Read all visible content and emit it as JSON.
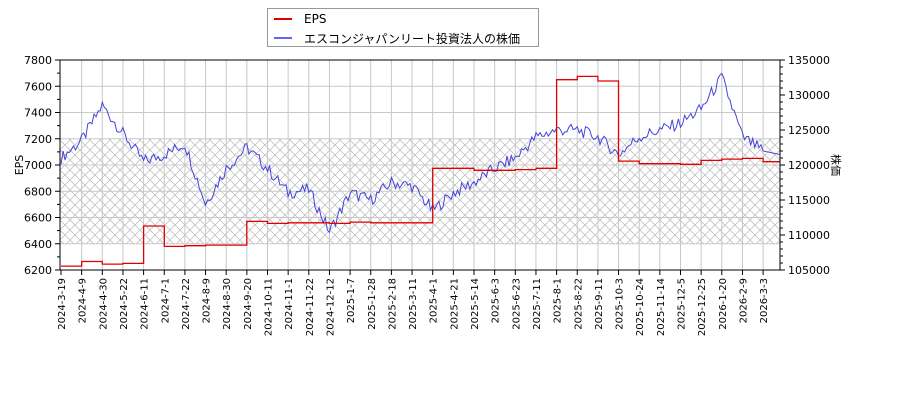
{
  "legend": {
    "items": [
      {
        "label": "EPS",
        "color": "#e00000"
      },
      {
        "label": "エスコンジャパンリート投資法人の株価",
        "color": "#4444dd"
      }
    ]
  },
  "axes": {
    "left_title": "EPS",
    "right_title": "株価",
    "left_ticks": [
      "7800",
      "7600",
      "7400",
      "7200",
      "7000",
      "6800",
      "6600",
      "6400",
      "6200"
    ],
    "right_ticks": [
      "135000",
      "130000",
      "125000",
      "120000",
      "115000",
      "110000",
      "105000"
    ],
    "x_ticks": [
      "2024-3-19",
      "2024-4-9",
      "2024-4-30",
      "2024-5-22",
      "2024-6-11",
      "2024-7-1",
      "2024-7-22",
      "2024-8-9",
      "2024-8-30",
      "2024-9-20",
      "2024-10-11",
      "2024-11-1",
      "2024-11-22",
      "2024-12-12",
      "2025-1-7",
      "2025-1-28",
      "2025-2-18",
      "2025-3-11",
      "2025-4-1",
      "2025-4-21",
      "2025-5-14",
      "2025-6-3",
      "2025-6-23",
      "2025-7-11",
      "2025-8-1",
      "2025-8-22",
      "2025-9-11",
      "2025-10-3",
      "2025-10-24",
      "2025-11-14",
      "2025-12-5",
      "2025-12-25",
      "2026-1-20",
      "2026-2-9",
      "2026-3-3"
    ]
  },
  "chart_data": {
    "type": "line",
    "title": "",
    "xlabel": "",
    "ylabel": "EPS",
    "ylabel_right": "株価",
    "ylim": [
      6200,
      7800
    ],
    "ylim_right": [
      105000,
      135000
    ],
    "grid": true,
    "legend_position": "top-center",
    "shaded_band": {
      "y_from": 6400,
      "y_to": 7200,
      "pattern": "crosshatch"
    },
    "categories": [
      "2024-3-19",
      "2024-4-9",
      "2024-4-30",
      "2024-5-22",
      "2024-6-11",
      "2024-7-1",
      "2024-7-22",
      "2024-8-9",
      "2024-8-30",
      "2024-9-20",
      "2024-10-11",
      "2024-11-1",
      "2024-11-22",
      "2024-12-12",
      "2025-1-7",
      "2025-1-28",
      "2025-2-18",
      "2025-3-11",
      "2025-4-1",
      "2025-4-21",
      "2025-5-14",
      "2025-6-3",
      "2025-6-23",
      "2025-7-11",
      "2025-8-1",
      "2025-8-22",
      "2025-9-11",
      "2025-10-3",
      "2025-10-24",
      "2025-11-14",
      "2025-12-5",
      "2025-12-25",
      "2026-1-20",
      "2026-2-9",
      "2026-3-3"
    ],
    "series": [
      {
        "name": "EPS",
        "axis": "left",
        "color": "#e00000",
        "values": [
          6230,
          6265,
          6245,
          6250,
          6535,
          6380,
          6385,
          6390,
          6390,
          6570,
          6555,
          6560,
          6560,
          6555,
          6565,
          6560,
          6560,
          6560,
          6975,
          6975,
          6960,
          6960,
          6965,
          6975,
          7650,
          7675,
          7640,
          7030,
          7010,
          7010,
          7005,
          7035,
          7045,
          7050,
          7025
        ]
      },
      {
        "name": "エスコンジャパンリート投資法人の株価",
        "axis": "right",
        "color": "#4444dd",
        "values": [
          121000,
          123500,
          128500,
          124500,
          120500,
          121500,
          123000,
          114500,
          119500,
          122500,
          119500,
          116000,
          116500,
          110500,
          116000,
          115000,
          117500,
          117000,
          113500,
          116000,
          117500,
          119500,
          121000,
          124000,
          125000,
          125000,
          124000,
          121500,
          124000,
          125000,
          126000,
          128000,
          132500,
          124000,
          122000
        ]
      }
    ]
  }
}
